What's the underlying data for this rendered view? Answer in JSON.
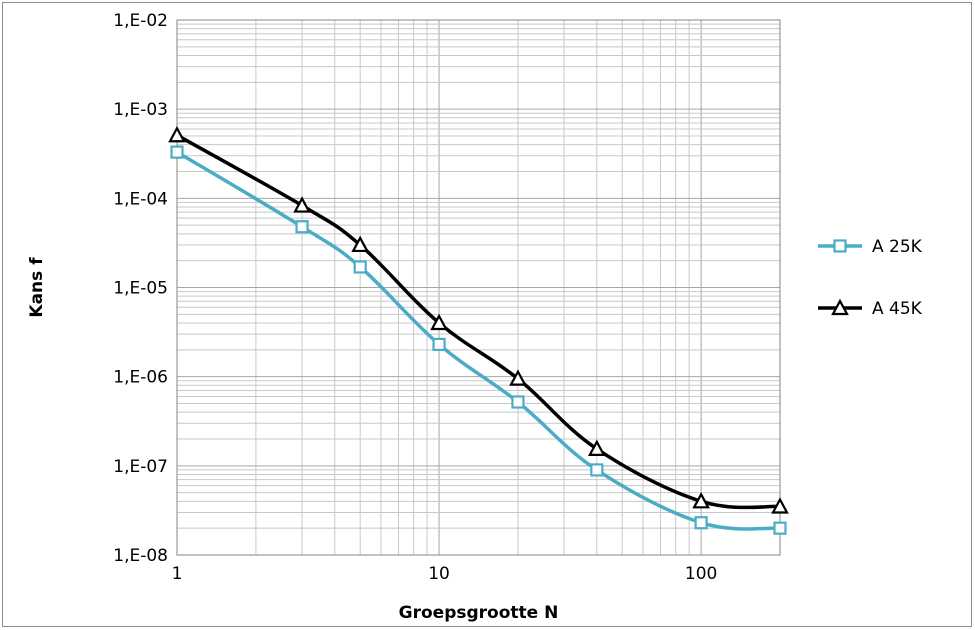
{
  "chart_data": {
    "type": "line",
    "xscale": "log",
    "yscale": "log",
    "xlabel": "Groepsgrootte N",
    "ylabel": "Kans f",
    "xlim": [
      1,
      200
    ],
    "ylim": [
      1e-08,
      0.01
    ],
    "x_ticks": [
      {
        "value": 1,
        "label": "1"
      },
      {
        "value": 10,
        "label": "10"
      },
      {
        "value": 100,
        "label": "100"
      }
    ],
    "y_ticks": [
      {
        "value": 0.01,
        "label": "1,E-02"
      },
      {
        "value": 0.001,
        "label": "1,E-03"
      },
      {
        "value": 0.0001,
        "label": "1,E-04"
      },
      {
        "value": 1e-05,
        "label": "1,E-05"
      },
      {
        "value": 1e-06,
        "label": "1,E-06"
      },
      {
        "value": 1e-07,
        "label": "1,E-07"
      },
      {
        "value": 1e-08,
        "label": "1,E-08"
      }
    ],
    "grid": true,
    "legend_position": "right",
    "series": [
      {
        "name": "A 25K",
        "color": "#4bacc6",
        "marker": "square",
        "x": [
          1,
          3,
          5,
          10,
          20,
          40,
          100,
          200
        ],
        "y": [
          0.00033,
          4.8e-05,
          1.7e-05,
          2.3e-06,
          5.2e-07,
          9e-08,
          2.3e-08,
          2e-08
        ]
      },
      {
        "name": "A 45K",
        "color": "#000000",
        "marker": "triangle",
        "x": [
          1,
          3,
          5,
          10,
          20,
          40,
          100,
          200
        ],
        "y": [
          0.00051,
          8.3e-05,
          3e-05,
          4e-06,
          9.5e-07,
          1.55e-07,
          4e-08,
          3.5e-08
        ]
      }
    ]
  }
}
